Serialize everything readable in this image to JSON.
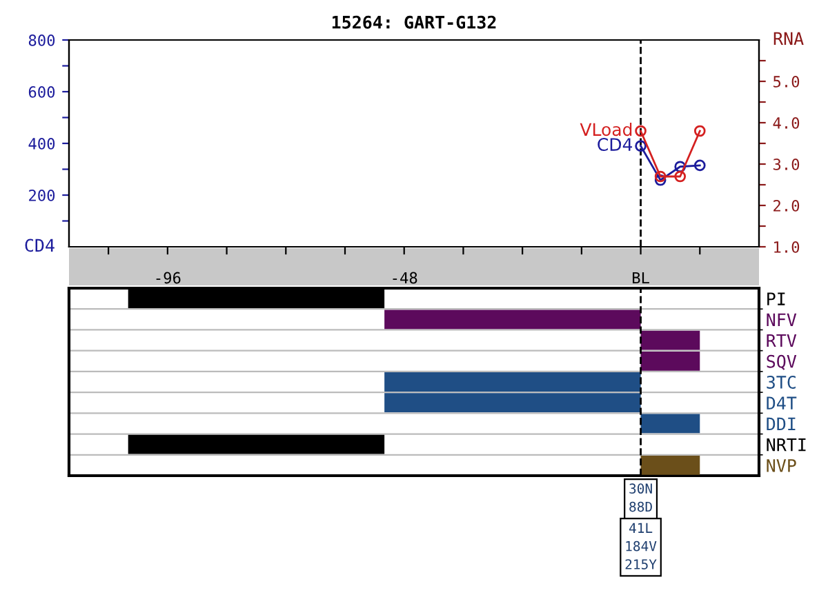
{
  "chart_data": [
    {
      "type": "line",
      "title": "15264: GART-G132",
      "ylabel": "CD4",
      "y2label": "RNA",
      "x": [
        0,
        4,
        8,
        12
      ],
      "series": [
        {
          "name": "CD4",
          "color": "#1c1c9c",
          "values": [
            390,
            258,
            310,
            315
          ],
          "axis": "y"
        },
        {
          "name": "VLoad",
          "color": "#d42020",
          "values": [
            3.8,
            2.7,
            2.7,
            3.8
          ],
          "axis": "y2"
        }
      ],
      "marker": "circle",
      "line_style": "solid",
      "xlim": [
        -116,
        24
      ],
      "xticks": [
        {
          "value": -108,
          "label": null
        },
        -96,
        {
          "value": -84,
          "label": null
        },
        {
          "value": -72,
          "label": null
        },
        {
          "value": -60,
          "label": null
        },
        -48,
        {
          "value": -36,
          "label": null
        },
        {
          "value": -24,
          "label": null
        },
        {
          "value": -12,
          "label": null
        },
        {
          "value": 0,
          "label": "BL"
        },
        {
          "value": 12,
          "label": null
        }
      ],
      "ylim": [
        0,
        800
      ],
      "yticks": [
        {
          "value": 100,
          "label": null
        },
        200,
        {
          "value": 300,
          "label": null
        },
        400,
        {
          "value": 500,
          "label": null
        },
        600,
        {
          "value": 700,
          "label": null
        },
        800
      ],
      "y2lim": [
        1.0,
        6.0
      ],
      "y2ticks": [
        {
          "value": 1.0,
          "label": "1.0"
        },
        {
          "value": 1.5,
          "label": null
        },
        {
          "value": 2.0,
          "label": "2.0"
        },
        {
          "value": 2.5,
          "label": null
        },
        {
          "value": 3.0,
          "label": "3.0"
        },
        {
          "value": 3.5,
          "label": null
        },
        {
          "value": 4.0,
          "label": "4.0"
        },
        {
          "value": 4.5,
          "label": null
        },
        {
          "value": 5.0,
          "label": "5.0"
        },
        {
          "value": 5.5,
          "label": null
        }
      ],
      "ref_lines": [
        {
          "axis": "x",
          "value": 0,
          "line_style": "dashed",
          "color": "#000000"
        }
      ],
      "grid": false,
      "legend": false
    },
    {
      "type": "bar",
      "orientation": "horizontal",
      "categories": [
        "PI",
        "NFV",
        "RTV",
        "SQV",
        "3TC",
        "D4T",
        "DDI",
        "NRTI",
        "NVP"
      ],
      "base": [
        -104,
        -52,
        0,
        0,
        -52,
        -52,
        0,
        -104,
        0
      ],
      "values": [
        52,
        52,
        12,
        12,
        52,
        52,
        12,
        52,
        12
      ],
      "colors": [
        "#000000",
        "#5c0a5c",
        "#5c0a5c",
        "#5c0a5c",
        "#1f4e85",
        "#1f4e85",
        "#1f4e85",
        "#000000",
        "#6b4f1a"
      ],
      "xlim": [
        -116,
        24
      ],
      "tick_labels": "y",
      "grid": "y",
      "ref_lines": [
        {
          "axis": "x",
          "value": 0,
          "line_style": "dashed",
          "color": "#000000"
        }
      ],
      "annotations": [
        "30N\n88D",
        "41L\n184V\n215Y"
      ]
    }
  ]
}
